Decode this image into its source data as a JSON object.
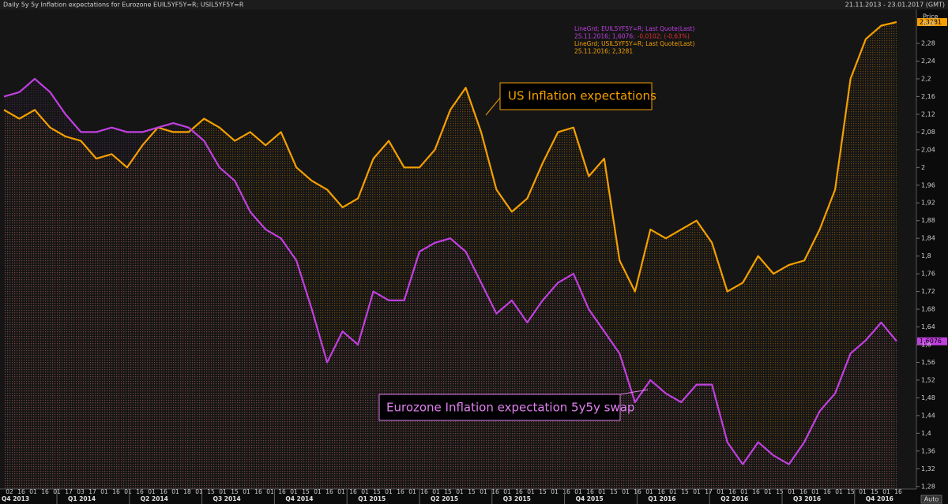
{
  "chart_data": {
    "type": "line",
    "title": "Daily 5y 5y Inflation expectations for Eurozone EUIL5YF5Y=R; USIL5YF5Y=R",
    "date_range": "21.11.2013 - 23.01.2017 (GMT)",
    "axis_title": [
      "Price",
      "EUR"
    ],
    "axis_button": "Auto",
    "categories": [
      null,
      null,
      null,
      null,
      null,
      null,
      null,
      null,
      null,
      null,
      null,
      null,
      null,
      null,
      null,
      null,
      null,
      null,
      null,
      null,
      null,
      null,
      null,
      null,
      null,
      null,
      null,
      null,
      null,
      null,
      null,
      null,
      null,
      null,
      null,
      null,
      null,
      null,
      null,
      null,
      null,
      null,
      null,
      null,
      null,
      null,
      null,
      null,
      null,
      null,
      null,
      null,
      null,
      null,
      null,
      null,
      null,
      null,
      null
    ],
    "series": [
      {
        "name": "LineGrd; USIL5YF5Y=R; Last Quote(Last)",
        "color": "#f5a000",
        "last_label": "2,3281",
        "values": [
          2.13,
          2.11,
          2.13,
          2.09,
          2.07,
          2.06,
          2.02,
          2.03,
          2.0,
          2.05,
          2.09,
          2.08,
          2.08,
          2.11,
          2.09,
          2.06,
          2.08,
          2.05,
          2.08,
          2.0,
          1.97,
          1.95,
          1.91,
          1.93,
          2.02,
          2.06,
          2.0,
          2.0,
          2.04,
          2.13,
          2.18,
          2.08,
          1.95,
          1.9,
          1.93,
          2.01,
          2.08,
          2.09,
          1.98,
          2.02,
          1.79,
          1.72,
          1.86,
          1.84,
          1.86,
          1.88,
          1.83,
          1.72,
          1.74,
          1.8,
          1.76,
          1.78,
          1.79,
          1.86,
          1.95,
          2.2,
          2.29,
          2.32,
          2.3281
        ]
      },
      {
        "name": "LineGrd; EUIL5YF5Y=R; Last Quote(Last)",
        "color": "#c040e0",
        "last_label": "1,6076",
        "values": [
          2.16,
          2.17,
          2.2,
          2.17,
          2.12,
          2.08,
          2.08,
          2.09,
          2.08,
          2.08,
          2.09,
          2.1,
          2.09,
          2.06,
          2.0,
          1.97,
          1.9,
          1.86,
          1.84,
          1.79,
          1.68,
          1.56,
          1.63,
          1.6,
          1.72,
          1.7,
          1.7,
          1.81,
          1.83,
          1.84,
          1.81,
          1.74,
          1.67,
          1.7,
          1.65,
          1.7,
          1.74,
          1.76,
          1.68,
          1.63,
          1.58,
          1.47,
          1.52,
          1.49,
          1.47,
          1.51,
          1.51,
          1.38,
          1.33,
          1.38,
          1.35,
          1.33,
          1.38,
          1.45,
          1.49,
          1.58,
          1.61,
          1.65,
          1.6076
        ]
      }
    ],
    "legend": [
      {
        "text": "LineGrd; EUIL5YF5Y=R; Last Quote(Last)",
        "color": "#c040e0"
      },
      {
        "text": "25.11.2016; 1,6076;",
        "color": "#c040e0",
        "change": "-0,0102; (-0,63%)"
      },
      {
        "text": "LineGrd; USIL5YF5Y=R; Last Quote(Last)",
        "color": "#f5a000"
      },
      {
        "text": "25.11.2016; 2,3281",
        "color": "#f5a000"
      }
    ],
    "annotations": [
      "US Inflation expectations",
      "Eurozone Inflation expectation 5y5y swap"
    ],
    "ylim": [
      1.26,
      2.34
    ],
    "yticks": [
      {
        "value": 1.28,
        "label": "1,28"
      },
      {
        "value": 1.32,
        "label": "1,32"
      },
      {
        "value": 1.36,
        "label": "1,36"
      },
      {
        "value": 1.4,
        "label": "1,4"
      },
      {
        "value": 1.44,
        "label": "1,44"
      },
      {
        "value": 1.48,
        "label": "1,48"
      },
      {
        "value": 1.52,
        "label": "1,52"
      },
      {
        "value": 1.56,
        "label": "1,56"
      },
      {
        "value": 1.6,
        "label": "1,6"
      },
      {
        "value": 1.64,
        "label": "1,64"
      },
      {
        "value": 1.68,
        "label": "1,68"
      },
      {
        "value": 1.72,
        "label": "1,72"
      },
      {
        "value": 1.76,
        "label": "1,76"
      },
      {
        "value": 1.8,
        "label": "1,8"
      },
      {
        "value": 1.84,
        "label": "1,84"
      },
      {
        "value": 1.88,
        "label": "1,88"
      },
      {
        "value": 1.92,
        "label": "1,92"
      },
      {
        "value": 1.96,
        "label": "1,96"
      },
      2,
      {
        "value": 2.04,
        "label": "2,04"
      },
      {
        "value": 2.08,
        "label": "2,08"
      },
      {
        "value": 2.12,
        "label": "2,12"
      },
      {
        "value": 2.16,
        "label": "2,16"
      },
      {
        "value": 2.2,
        "label": "2,2"
      },
      {
        "value": 2.24,
        "label": "2,24"
      },
      {
        "value": 2.28,
        "label": "2,28"
      }
    ],
    "x_day_labels": [
      "02",
      "16",
      "01",
      "16",
      "01",
      "17",
      "03",
      "17",
      "01",
      "16",
      "01",
      "16",
      "01",
      "16",
      "01",
      "18",
      "01",
      "15",
      "01",
      "15",
      "01",
      "16",
      "01",
      "16",
      "01",
      "15",
      "01",
      "16",
      "01",
      "16",
      "01",
      "15",
      "01",
      "16",
      "01",
      "16",
      "01",
      "15",
      "01",
      "15",
      "01",
      "16",
      "01",
      "16",
      "01",
      "15",
      "01",
      "16",
      "01",
      "16",
      "01",
      "15",
      "01",
      "16",
      "01",
      "16",
      "01",
      "15",
      "01",
      "17",
      "01",
      "16",
      "01",
      "16",
      "01",
      "15",
      "01",
      "16",
      "01",
      "16",
      "01",
      "15",
      "01",
      "15",
      "01",
      "16"
    ],
    "x_quarter_labels": [
      "Q4 2013",
      "Q1 2014",
      "Q2 2014",
      "Q3 2014",
      "Q4 2014",
      "Q1 2015",
      "Q2 2015",
      "Q3 2015",
      "Q4 2015",
      "Q1 2016",
      "Q2 2016",
      "Q3 2016",
      "Q4 2016"
    ],
    "grid": false
  }
}
